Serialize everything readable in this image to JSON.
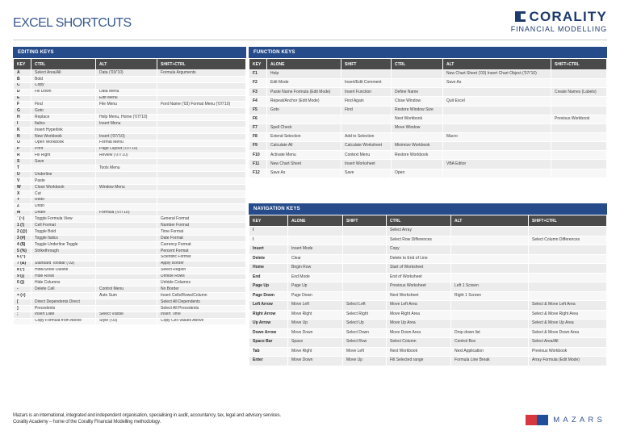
{
  "page_title": "EXCEL SHORTCUTS",
  "brand": {
    "name": "CORALITY",
    "subtitle": "FINANCIAL MODELLING",
    "icon": "corality-logo-icon",
    "color": "#1e3a6e"
  },
  "accent_color": "#254b8a",
  "editing_keys": {
    "title": "EDITING KEYS",
    "headers": [
      "KEY",
      "CTRL",
      "ALT",
      "SHIFT+CTRL"
    ],
    "rows": [
      [
        "A",
        "Select Area/All",
        "Data ('03/'10)",
        "Formula Arguments"
      ],
      [
        "B",
        "Bold",
        "",
        ""
      ],
      [
        "C",
        "Copy",
        "",
        ""
      ],
      [
        "D",
        "Fill Down",
        "Data Menu",
        ""
      ],
      [
        "E",
        "",
        "Edit Menu",
        ""
      ],
      [
        "F",
        "Find",
        "File Menu",
        "Font Name ('03) Format Menu ('07/'10)"
      ],
      [
        "G",
        "Goto",
        "",
        ""
      ],
      [
        "H",
        "Replace",
        "Help Menu, Home ('07/'10)",
        ""
      ],
      [
        "I",
        "Italics",
        "Insert Menu",
        ""
      ],
      [
        "K",
        "Insert Hyperlink",
        "",
        ""
      ],
      [
        "N",
        "New Workbook",
        "Insert ('07/'10)",
        ""
      ],
      [
        "O",
        "Open Workbook",
        "Format Menu",
        ""
      ],
      [
        "P",
        "Print",
        "Page Layout ('07/'10)",
        ""
      ],
      [
        "R",
        "Fill Right",
        "Review ('07/'10)",
        ""
      ],
      [
        "S",
        "Save",
        "",
        ""
      ],
      [
        "T",
        "",
        "Tools Menu",
        ""
      ],
      [
        "U",
        "Underline",
        "",
        ""
      ],
      [
        "V",
        "Paste",
        "",
        ""
      ],
      [
        "W",
        "Close Workbook",
        "Window Menu",
        ""
      ],
      [
        "X",
        "Cut",
        "",
        ""
      ],
      [
        "Y",
        "Redo",
        "",
        ""
      ],
      [
        "Z",
        "Undo",
        "",
        ""
      ],
      [
        "M",
        "Under",
        "Formula ('07/'10)",
        ""
      ],
      [
        "` (~)",
        "Toggle Formula View",
        "",
        "General Format"
      ],
      [
        "1 (!)",
        "Cell Format",
        "",
        "Number Format"
      ],
      [
        "2 (@)",
        "Toggle Bold",
        "",
        "Time Format"
      ],
      [
        "3 (#)",
        "Toggle Italics",
        "",
        "Date Format"
      ],
      [
        "4 ($)",
        "Toggle Underline Toggle",
        "",
        "Currency Format"
      ],
      [
        "5 (%)",
        "Strikethrough",
        "",
        "Percent Format"
      ],
      [
        "6 (^)",
        "",
        "",
        "Scientific Format"
      ],
      [
        "7 (&)",
        "Standard Toolbar ('03)",
        "",
        "Apply Border"
      ],
      [
        "8 (*)",
        "Hide/Show Outline",
        "",
        "Select Region"
      ],
      [
        "9 (()",
        "Hide Rows",
        "",
        "Unhide Rows"
      ],
      [
        "0 ())",
        "Hide Columns",
        "",
        "Unhide Columns"
      ],
      [
        "-",
        "Delete Cell",
        "Control Menu",
        "No Border"
      ],
      [
        "= (+)",
        "",
        "Auto Sum",
        "Insert Cells/Rows/Column"
      ],
      [
        "[",
        "Direct Dependents Direct",
        "",
        "Select All Dependents"
      ],
      [
        "]",
        "Precedents",
        "",
        "Select All Precedents"
      ],
      [
        ";",
        "Insert Date",
        "Select Visible",
        "Insert Time"
      ],
      [
        "'",
        "Copy Formula from Above",
        "Style ('03)",
        "Copy Cell Values Above"
      ]
    ]
  },
  "function_keys": {
    "title": "FUNCTION KEYS",
    "headers": [
      "KEY",
      "ALONE",
      "SHIFT",
      "CTRL",
      "ALT",
      "SHIFT+CTRL"
    ],
    "rows": [
      [
        "F1",
        "Help",
        "",
        "",
        "New Chart Sheet ('03) Insert Chart Object ('07/'10)",
        ""
      ],
      [
        "F2",
        "Edit Mode",
        "Insert/Edit Comment",
        "",
        "Save As",
        ""
      ],
      [
        "F3",
        "Paste Name Formula (Edit Mode)",
        "Insert Function",
        "Define Name",
        "",
        "Create Names (Labels)"
      ],
      [
        "F4",
        "Repeat/Anchor (Edit Mode)",
        "Find Again",
        "Close Window",
        "Quit Excel",
        ""
      ],
      [
        "F5",
        "Goto",
        "Find",
        "Restore Window Size",
        "",
        ""
      ],
      [
        "F6",
        "",
        "",
        "Next Workbook",
        "",
        "Previous Workbook"
      ],
      [
        "F7",
        "Spell Check",
        "",
        "Move Window",
        "",
        ""
      ],
      [
        "F8",
        "Extend Selection",
        "Add to Selection",
        "",
        "Macro",
        ""
      ],
      [
        "F9",
        "Calculate All",
        "Calculate Worksheet",
        "Minimize Workbook",
        "",
        ""
      ],
      [
        "F10",
        "Activate Menu",
        "Context Menu",
        "Restore Workbook",
        "",
        ""
      ],
      [
        "F11",
        "New Chart Sheet",
        "Insert Worksheet",
        "",
        "VBA Editor",
        ""
      ],
      [
        "F12",
        "Save As",
        "Save",
        "Open",
        "",
        ""
      ]
    ]
  },
  "navigation_keys": {
    "title": "NAVIGATION KEYS",
    "headers": [
      "KEY",
      "ALONE",
      "SHIFT",
      "CTRL",
      "ALT",
      "SHIFT+CTRL"
    ],
    "rows": [
      [
        "/",
        "",
        "",
        "Select Array",
        "",
        ""
      ],
      [
        "\\",
        "",
        "",
        "Select Row Differences",
        "",
        "Select Column Differences"
      ],
      [
        "Insert",
        "Insert Mode",
        "",
        "Copy",
        "",
        ""
      ],
      [
        "Delete",
        "Clear",
        "",
        "Delete to End of Line",
        "",
        ""
      ],
      [
        "Home",
        "Begin Row",
        "",
        "Start of Worksheet",
        "",
        ""
      ],
      [
        "End",
        "End Mode",
        "",
        "End of Worksheet",
        "",
        ""
      ],
      [
        "Page Up",
        "Page Up",
        "",
        "Previous Worksheet",
        "Left 1 Screen",
        ""
      ],
      [
        "Page Down",
        "Page Down",
        "",
        "Next Worksheet",
        "Right 1 Screen",
        ""
      ],
      [
        "Left Arrow",
        "Move Left",
        "Select Left",
        "Move Left Area",
        "",
        "Select & Move Left Area"
      ],
      [
        "Right Arrow",
        "Move Right",
        "Select Right",
        "Move Right Area",
        "",
        "Select & Move Right Area"
      ],
      [
        "Up Arrow",
        "Move Up",
        "Select Up",
        "Move Up Area",
        "",
        "Select & Move Up Area"
      ],
      [
        "Down Arrow",
        "Move Down",
        "Select Down",
        "Move Down Area",
        "Drop down list",
        "Select & Move Down Area"
      ],
      [
        "Space Bar",
        "Space",
        "Select Row",
        "Select Column",
        "Control Box",
        "Select Area/All"
      ],
      [
        "Tab",
        "Move Right",
        "Move Left",
        "Next Workbook",
        "Next Application",
        "Previous Workbook"
      ],
      [
        "Enter",
        "Move Down",
        "Move Up",
        "Fill Selected range",
        "Formula Line Break",
        "Array Formula (Edit Mode)"
      ]
    ]
  },
  "footer": {
    "line1": "Mazars is an international, integrated and independent organisation, specialising in audit, accountancy, tax, legal and advisory services.",
    "line2": "Corality Academy – home of the Corality Financial Modelling methodology.",
    "mazars_name": "MAZARS",
    "mazars_icon": "mazars-logo-icon"
  }
}
